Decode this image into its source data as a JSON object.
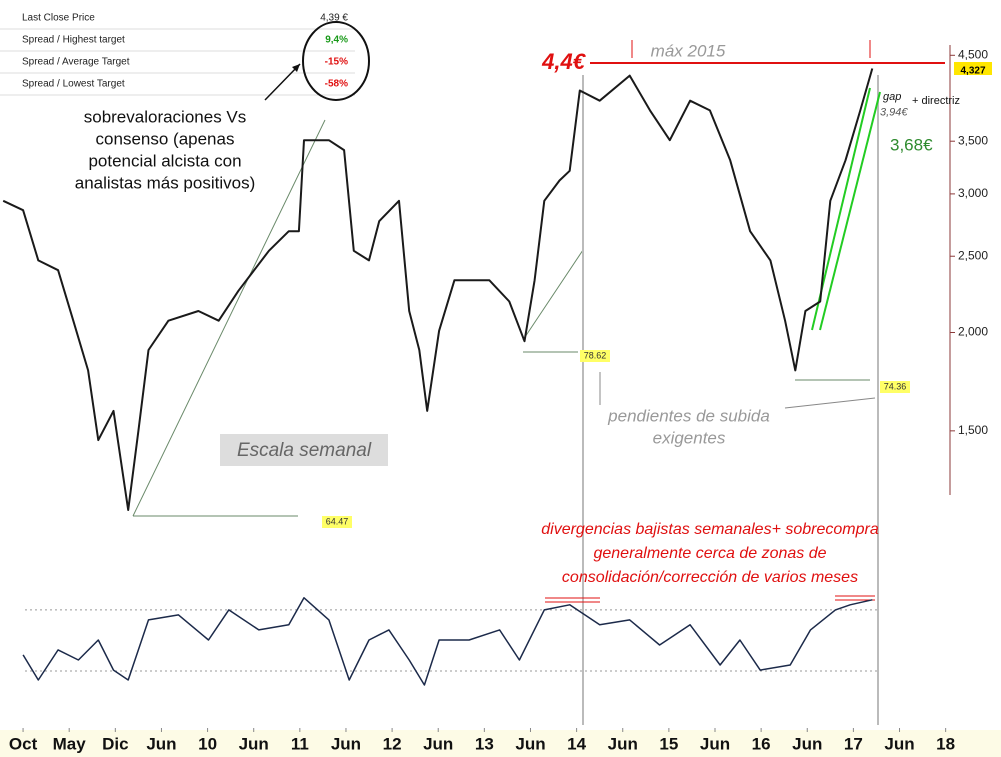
{
  "table": {
    "rows": [
      [
        "Last Close Price",
        "4,39 €"
      ],
      [
        "Spread / Highest target",
        "9,4%"
      ],
      [
        "Spread / Average Target",
        "-15%"
      ],
      [
        "Spread / Lowest Target",
        "-58%"
      ]
    ]
  },
  "chart_data": [
    {
      "type": "line",
      "log_scale": true,
      "x": [
        -0.43,
        0,
        0.33,
        0.76,
        1.09,
        1.41,
        1.63,
        1.96,
        2.28,
        2.5,
        2.72,
        3.15,
        3.8,
        4.24,
        4.67,
        5.33,
        5.76,
        5.98,
        6.09,
        6.63,
        6.96,
        7.17,
        7.5,
        7.72,
        8.15,
        8.37,
        8.59,
        8.76,
        9.02,
        9.35,
        9.67,
        10.11,
        10.54,
        10.87,
        11.09,
        11.3,
        11.63,
        11.85,
        12.07,
        12.5,
        13.15,
        13.59,
        14.02,
        14.46,
        14.89,
        15.33,
        15.76,
        16.2,
        16.52,
        16.74,
        16.96,
        17.28,
        17.5,
        17.83,
        18.15,
        18.41
      ],
      "series": [
        {
          "color": "#1a1a1a",
          "values": [
            2.94,
            2.86,
            2.47,
            2.4,
            2.07,
            1.79,
            1.46,
            1.59,
            1.19,
            1.5,
            1.9,
            2.07,
            2.13,
            2.07,
            2.26,
            2.54,
            2.69,
            2.69,
            3.51,
            3.51,
            3.41,
            2.54,
            2.47,
            2.77,
            2.94,
            2.13,
            1.9,
            1.59,
            2.01,
            2.33,
            2.33,
            2.33,
            2.19,
            1.95,
            2.33,
            2.94,
            3.12,
            3.21,
            4.06,
            3.94,
            4.24,
            3.83,
            3.51,
            3.94,
            3.83,
            3.31,
            2.69,
            2.47,
            2.07,
            1.79,
            2.13,
            2.19,
            2.94,
            3.31,
            3.83,
            4.33
          ]
        }
      ],
      "xlim": [
        -0.5,
        21.2
      ],
      "xticks": [
        {
          "value": 0,
          "label": "Oct"
        },
        {
          "value": 1,
          "label": "May"
        },
        {
          "value": 2,
          "label": "Dic"
        },
        {
          "value": 3,
          "label": "Jun"
        },
        {
          "value": 4,
          "label": "10"
        },
        {
          "value": 5,
          "label": "Jun"
        },
        {
          "value": 6,
          "label": "11"
        },
        {
          "value": 7,
          "label": "Jun"
        },
        {
          "value": 8,
          "label": "12"
        },
        {
          "value": 9,
          "label": "Jun"
        },
        {
          "value": 10,
          "label": "13"
        },
        {
          "value": 11,
          "label": "Jun"
        },
        {
          "value": 12,
          "label": "14"
        },
        {
          "value": 13,
          "label": "Jun"
        },
        {
          "value": 14,
          "label": "15"
        },
        {
          "value": 15,
          "label": "Jun"
        },
        {
          "value": 16,
          "label": "16"
        },
        {
          "value": 17,
          "label": "Jun"
        },
        {
          "value": 18,
          "label": "17"
        },
        {
          "value": 19,
          "label": "Jun"
        },
        {
          "value": 20,
          "label": "18"
        }
      ],
      "ylim": [
        1.09,
        5.29
      ],
      "yticks": [
        {
          "value": 1.5,
          "label": "1,500"
        },
        {
          "value": 2,
          "label": "2,000"
        },
        {
          "value": 2.5,
          "label": "2,500"
        },
        {
          "value": 3,
          "label": "3,000"
        },
        {
          "value": 3.5,
          "label": "3,500"
        },
        {
          "value": 4.5,
          "label": "4,500"
        }
      ],
      "last_price": {
        "value": 4.327,
        "label": "4,327"
      },
      "levels": [
        {
          "value": 4.4,
          "label": "4,4€",
          "color": "#e01010"
        },
        {
          "value": 3.94,
          "label": "3,94€",
          "color": "#555555"
        },
        {
          "value": 3.68,
          "label": "3,68€",
          "color": "#2e8b2e"
        }
      ],
      "rsi_labels": [
        64.47,
        78.62,
        74.36
      ]
    },
    {
      "type": "line",
      "x": [
        0,
        0.33,
        0.76,
        1.2,
        1.63,
        1.96,
        2.28,
        2.72,
        3.37,
        4.02,
        4.46,
        5.11,
        5.76,
        6.09,
        6.63,
        7.07,
        7.5,
        7.93,
        8.37,
        8.7,
        9.02,
        9.67,
        10.33,
        10.76,
        11.3,
        11.85,
        12.5,
        13.15,
        13.8,
        14.46,
        15.11,
        15.54,
        15.98,
        16.63,
        17.07,
        17.61,
        17.93,
        18.41
      ],
      "series": [
        {
          "color": "#1c2a4a",
          "values": [
            40.5,
            24.1,
            43.8,
            37.2,
            50.3,
            30.6,
            24.1,
            63.4,
            66.7,
            50.3,
            70,
            56.9,
            60.2,
            77.9,
            63.4,
            24.1,
            50.3,
            56.9,
            37.2,
            20.8,
            50.3,
            50.3,
            56.9,
            37.2,
            70,
            73.3,
            60.2,
            63.4,
            47,
            60.2,
            33.9,
            50.3,
            30.6,
            33.9,
            56.9,
            70,
            73.3,
            76.6
          ]
        }
      ],
      "xlim": [
        -0.5,
        21.2
      ],
      "ylim": [
        11,
        83
      ],
      "reference_lines": [
        70,
        30
      ]
    }
  ],
  "annotations": {
    "consensus": [
      "sobrevaloraciones Vs",
      "consenso (apenas",
      "potencial alcista con",
      "analistas más positivos)"
    ],
    "scale": "Escala semanal",
    "max": "máx 2015",
    "gap": "gap",
    "trend": "+ directriz",
    "slopes": [
      "pendientes de subida",
      "exigentes"
    ],
    "divergence": [
      "divergencias bajistas semanales+ sobrecompra",
      "generalmente cerca de zonas de",
      "consolidación/corrección de varios meses"
    ]
  }
}
